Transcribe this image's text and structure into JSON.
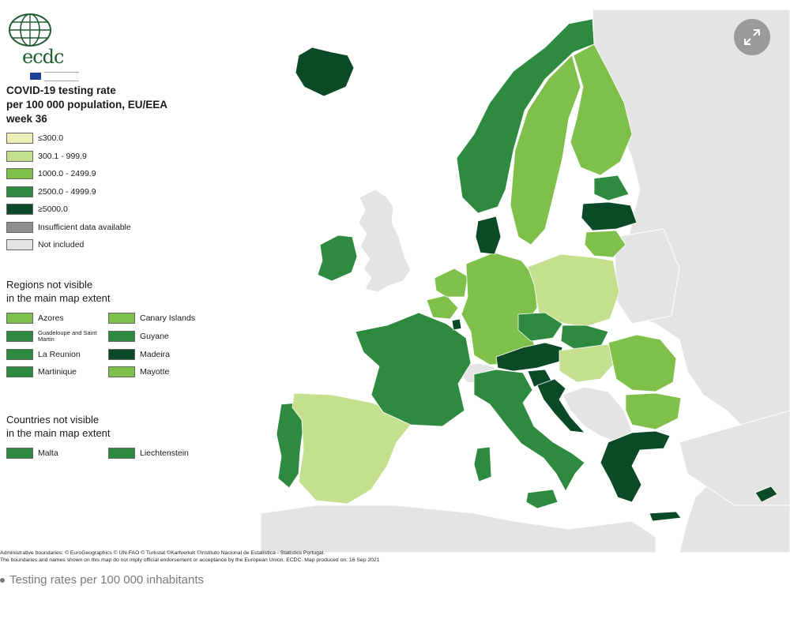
{
  "title_lines": [
    "COVID-19 testing rate",
    "per 100 000 population, EU/EEA",
    "week 36"
  ],
  "logo": {
    "wordmark": "ecdc",
    "agency_name": "European Centre for Disease Prevention and Control"
  },
  "legend": {
    "classes": [
      {
        "label": "≤300.0",
        "color": "#ecefb5"
      },
      {
        "label": "300.1 - 999.9",
        "color": "#c4df8e"
      },
      {
        "label": "1000.0 - 2499.9",
        "color": "#7fc04a"
      },
      {
        "label": "2500.0 - 4999.9",
        "color": "#2e8a3e"
      },
      {
        "label": "≥5000.0",
        "color": "#0b4a27"
      },
      {
        "label": "Insufficient data available",
        "color": "#8f8f8f"
      },
      {
        "label": "Not included",
        "color": "#e4e4e4"
      }
    ]
  },
  "regions_section": {
    "title_lines": [
      "Regions not visible",
      "in the main map extent"
    ],
    "items": [
      {
        "label": "Azores",
        "color": "#7fc04a"
      },
      {
        "label": "Canary Islands",
        "color": "#7fc04a"
      },
      {
        "label": "Guadeloupe and Saint Martin",
        "color": "#2e8a3e"
      },
      {
        "label": "Guyane",
        "color": "#2e8a3e"
      },
      {
        "label": "La Reunion",
        "color": "#2e8a3e"
      },
      {
        "label": "Madeira",
        "color": "#0b4a27"
      },
      {
        "label": "Martinique",
        "color": "#2e8a3e"
      },
      {
        "label": "Mayotte",
        "color": "#7fc04a"
      }
    ]
  },
  "countries_section": {
    "title_lines": [
      "Countries not visible",
      "in the main map extent"
    ],
    "items": [
      {
        "label": "Malta",
        "color": "#2e8a3e"
      },
      {
        "label": "Liechtenstein",
        "color": "#2e8a3e"
      }
    ]
  },
  "map": {
    "sea_color": "#ffffff",
    "non_included_color": "#e4e4e4",
    "country_classes": {
      "Iceland": "≥5000.0",
      "Ireland": "2500.0 - 4999.9",
      "Portugal": "2500.0 - 4999.9",
      "Spain": "300.1 - 999.9",
      "France": "2500.0 - 4999.9",
      "Belgium": "1000.0 - 2499.9",
      "Netherlands": "1000.0 - 2499.9",
      "Luxembourg": "≥5000.0",
      "Germany": "1000.0 - 2499.9",
      "Denmark": "≥5000.0",
      "Norway": "2500.0 - 4999.9",
      "Sweden": "1000.0 - 2499.9",
      "Finland": "1000.0 - 2499.9",
      "Estonia": "2500.0 - 4999.9",
      "Latvia": "≥5000.0",
      "Lithuania": "1000.0 - 2499.9",
      "Poland": "300.1 - 999.9",
      "Czechia": "2500.0 - 4999.9",
      "Slovakia": "2500.0 - 4999.9",
      "Austria": "≥5000.0",
      "Slovenia": "≥5000.0",
      "Croatia": "≥5000.0",
      "Hungary": "300.1 - 999.9",
      "Romania": "1000.0 - 2499.9",
      "Bulgaria": "1000.0 - 2499.9",
      "Italy": "2500.0 - 4999.9",
      "Greece": "≥5000.0",
      "Cyprus": "≥5000.0"
    }
  },
  "attribution_lines": [
    "Administrative boundaries: © EuroGeographics © UN-FAO © Turkstat ©Kartverket ©Instituto Nacional de Estatística - Statistics Portugal.",
    "The boundaries and names shown on this map do not imply official endorsement or acceptance by the European Union. ECDC. Map produced on: 16 Sep 2021"
  ],
  "caption": "Testing rates per 100 000 inhabitants",
  "expand_button": {
    "icon": "expand-icon"
  }
}
